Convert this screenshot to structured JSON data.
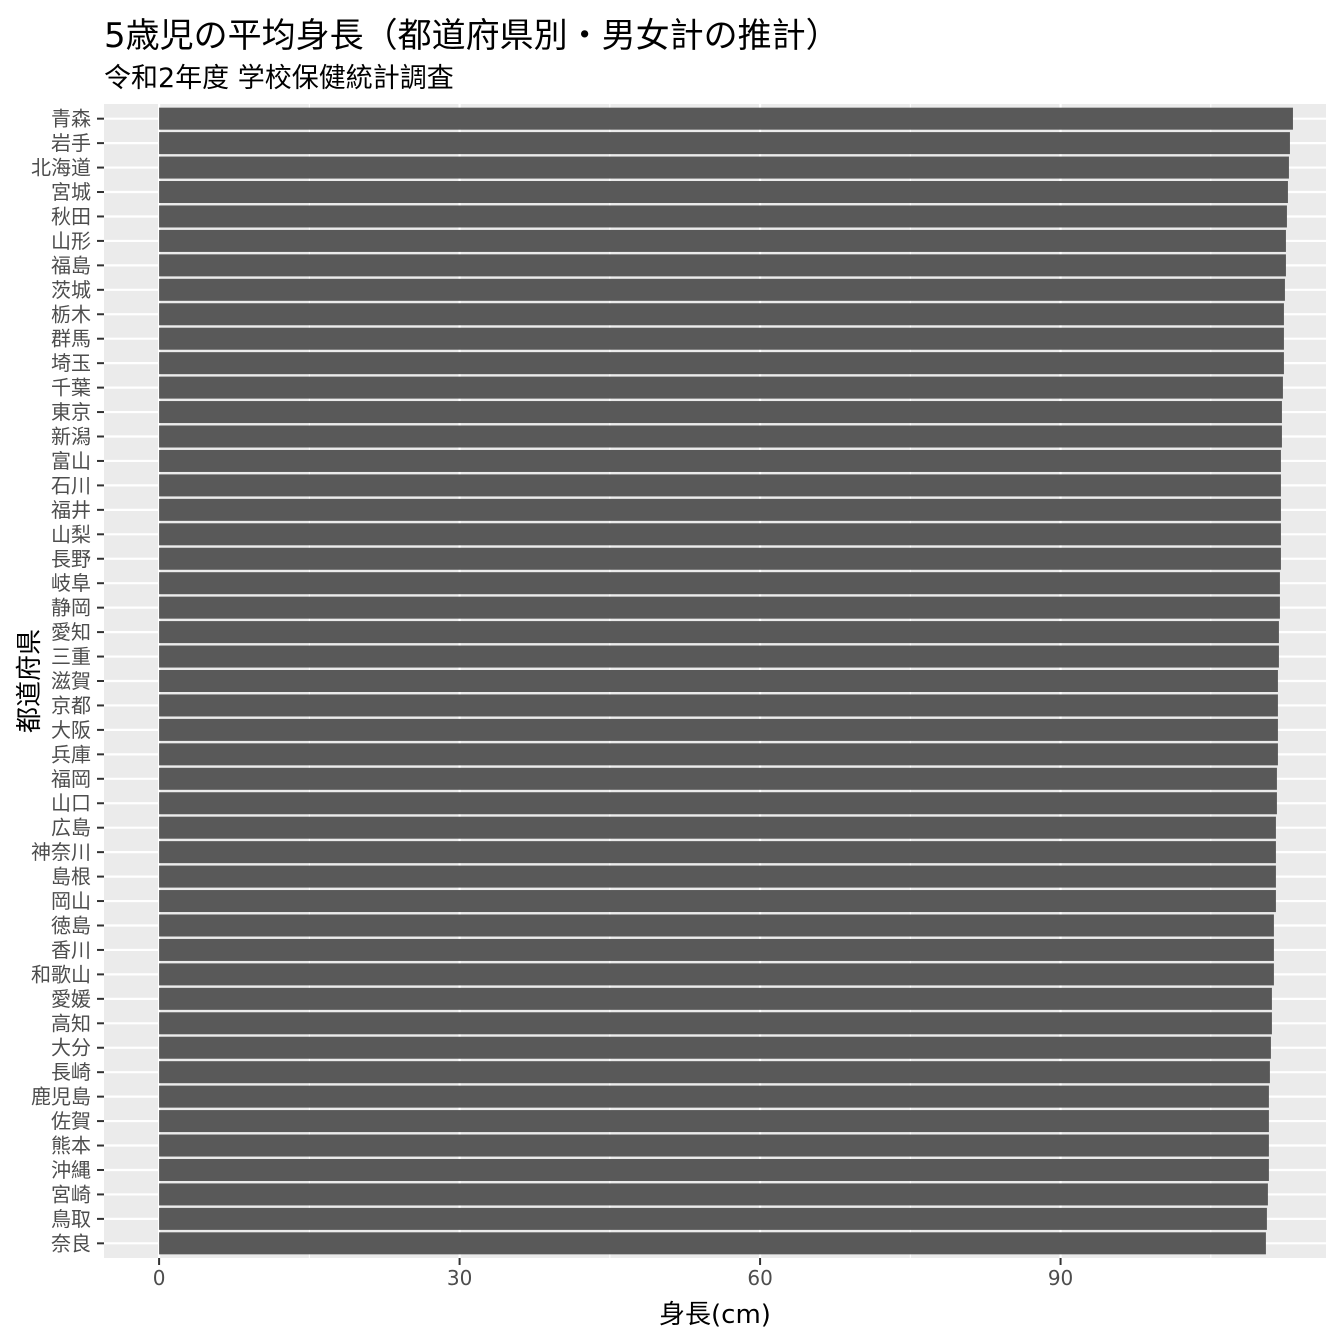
{
  "title": "5歳児の平均身長（都道府県別・男女計の推計）",
  "subtitle": "令和2年度 学校保健統計調査",
  "chart_data": {
    "type": "bar",
    "orientation": "horizontal",
    "title": "5歳児の平均身長（都道府県別・男女計の推計）",
    "subtitle": "令和2年度 学校保健統計調査",
    "xlabel": "身長(cm)",
    "ylabel": "都道府県",
    "xlim": [
      -5.5,
      116.5
    ],
    "x_ticks": [
      0,
      30,
      60,
      90
    ],
    "grid": true,
    "colors": {
      "bar": "#595959",
      "panel": "#ebebeb",
      "grid": "#ffffff"
    },
    "categories": [
      "奈良",
      "鳥取",
      "宮崎",
      "沖縄",
      "熊本",
      "佐賀",
      "鹿児島",
      "長崎",
      "大分",
      "高知",
      "愛媛",
      "和歌山",
      "香川",
      "徳島",
      "岡山",
      "島根",
      "神奈川",
      "広島",
      "山口",
      "福岡",
      "兵庫",
      "大阪",
      "京都",
      "滋賀",
      "三重",
      "愛知",
      "静岡",
      "岐阜",
      "長野",
      "山梨",
      "福井",
      "石川",
      "富山",
      "新潟",
      "東京",
      "千葉",
      "埼玉",
      "群馬",
      "栃木",
      "茨城",
      "福島",
      "山形",
      "秋田",
      "宮城",
      "北海道",
      "岩手",
      "青森"
    ],
    "values": [
      110.5,
      110.6,
      110.7,
      110.8,
      110.8,
      110.8,
      110.8,
      110.9,
      111.0,
      111.1,
      111.1,
      111.3,
      111.3,
      111.3,
      111.5,
      111.5,
      111.5,
      111.5,
      111.6,
      111.6,
      111.7,
      111.7,
      111.7,
      111.7,
      111.8,
      111.8,
      111.9,
      111.9,
      112.0,
      112.0,
      112.0,
      112.0,
      112.0,
      112.1,
      112.1,
      112.2,
      112.3,
      112.3,
      112.3,
      112.4,
      112.5,
      112.5,
      112.6,
      112.7,
      112.8,
      112.9,
      113.2
    ]
  }
}
